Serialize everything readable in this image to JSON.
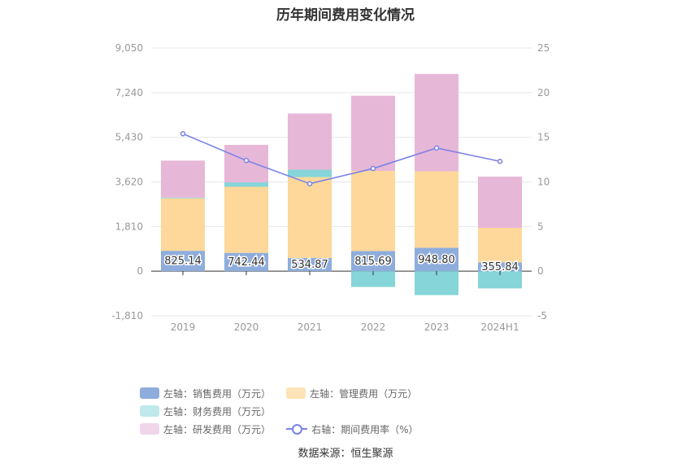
{
  "chart_data": {
    "type": "bar",
    "title": "历年期间费用变化情况",
    "categories": [
      "2019",
      "2020",
      "2021",
      "2022",
      "2023",
      "2024H1"
    ],
    "left_axis": {
      "ticks": [
        "9,050",
        "7,240",
        "5,430",
        "3,620",
        "1,810",
        "0",
        "-1,810"
      ],
      "ylim": [
        -1810,
        9050
      ]
    },
    "right_axis": {
      "ticks": [
        "25",
        "20",
        "15",
        "10",
        "5",
        "0",
        "-5"
      ],
      "ylim": [
        -5,
        25
      ]
    },
    "series": [
      {
        "name": "左轴：销售费用（万元）",
        "axis": "left",
        "type": "bar",
        "color": "#8eaddc",
        "values": [
          825.14,
          742.44,
          534.87,
          815.69,
          948.8,
          355.84
        ],
        "labels": [
          "825.14",
          "742.44",
          "534.87",
          "815.69",
          "948.80",
          "355.84"
        ]
      },
      {
        "name": "左轴：管理费用（万元）",
        "axis": "left",
        "type": "bar",
        "color": "#fdd89a",
        "values": [
          2130,
          2680,
          3280,
          3250,
          3100,
          1400
        ]
      },
      {
        "name": "左轴：财务费用（万元）",
        "axis": "left",
        "type": "bar",
        "color": "#86d5d8",
        "values": [
          30,
          180,
          300,
          -640,
          -970,
          -700
        ]
      },
      {
        "name": "左轴：研发费用（万元）",
        "axis": "left",
        "type": "bar",
        "color": "#e7b7d8",
        "values": [
          1500,
          1520,
          2280,
          3050,
          3950,
          2080
        ]
      },
      {
        "name": "右轴：期间费用率（%）",
        "axis": "right",
        "type": "line",
        "color": "#7b83e8",
        "values": [
          15.4,
          12.4,
          9.8,
          11.5,
          13.8,
          12.3
        ]
      }
    ],
    "legend_position": "bottom",
    "grid": true
  },
  "source": "数据来源：恒生聚源"
}
